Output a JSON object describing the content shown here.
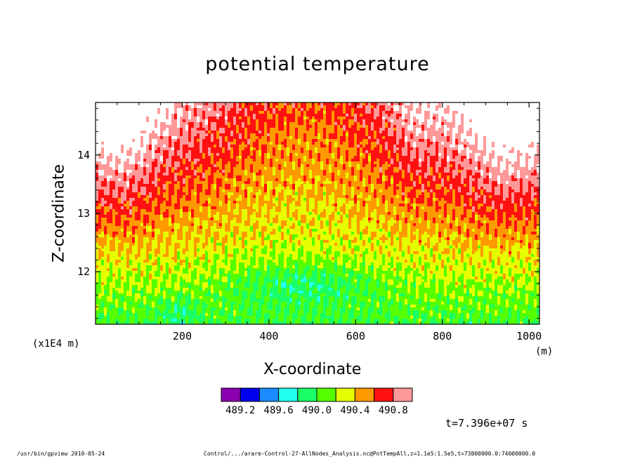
{
  "chart_data": {
    "type": "heatmap",
    "title": "potential temperature",
    "xlabel": "X-coordinate",
    "ylabel": "Z-coordinate",
    "x_scale_note": "(x1E4 m)",
    "x_unit": "(m)",
    "xlim": [
      0,
      1024
    ],
    "ylim": [
      11.1,
      14.9
    ],
    "x_ticks": [
      200,
      400,
      600,
      800,
      1000
    ],
    "x_tick_labels": [
      "200",
      "400",
      "600",
      "800",
      "1000"
    ],
    "y_ticks": [
      12,
      13,
      14
    ],
    "y_tick_labels": [
      "12",
      "13",
      "14"
    ],
    "colorbar": {
      "colors": [
        "#8a00b0",
        "#0000ee",
        "#1a8cff",
        "#22ffee",
        "#1aff66",
        "#55ff00",
        "#e6ff00",
        "#ff9900",
        "#ff1111",
        "#ff9999"
      ],
      "levels": [
        489.2,
        489.4,
        489.6,
        489.8,
        490.0,
        490.2,
        490.4,
        490.6,
        490.8
      ],
      "labels": [
        "489.2",
        "489.6",
        "490.0",
        "490.4",
        "490.8"
      ]
    },
    "grid": false,
    "time_label": "t=7.396e+07 s"
  },
  "footer": {
    "left": "/usr/bin/gpview   2010-05-24",
    "right": "Control/.../arare-Control-27-AllNodes_Analysis.nc@PotTempAll,z=1.1e5:1.5e5,t=73800000.0:74000000.0"
  }
}
